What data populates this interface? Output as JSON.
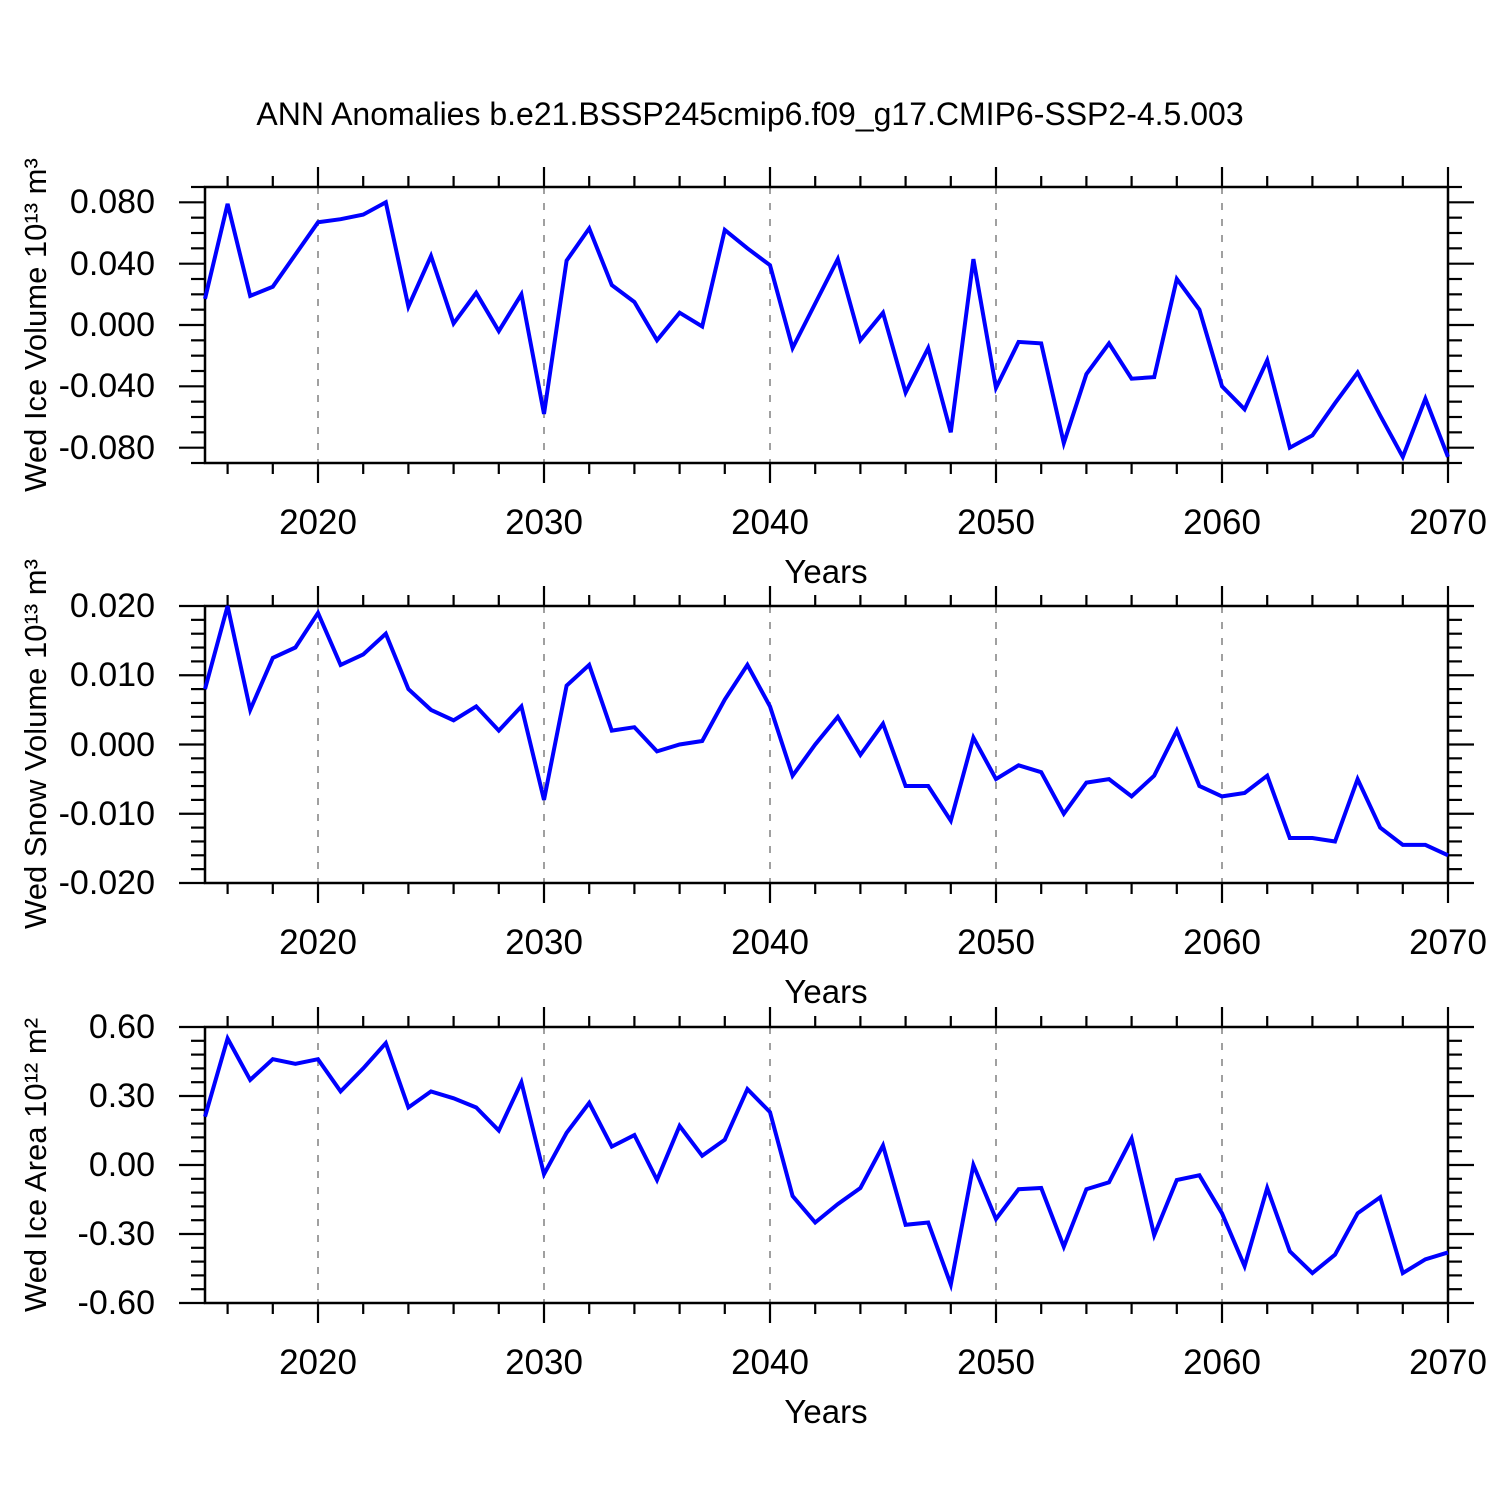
{
  "title": "ANN Anomalies b.e21.BSSP245cmip6.f09_g17.CMIP6-SSP2-4.5.003",
  "colors": {
    "line": "#0000ff",
    "grid": "#a0a0a0",
    "axis": "#000000",
    "background": "#ffffff"
  },
  "years": [
    2015,
    2016,
    2017,
    2018,
    2019,
    2020,
    2021,
    2022,
    2023,
    2024,
    2025,
    2026,
    2027,
    2028,
    2029,
    2030,
    2031,
    2032,
    2033,
    2034,
    2035,
    2036,
    2037,
    2038,
    2039,
    2040,
    2041,
    2042,
    2043,
    2044,
    2045,
    2046,
    2047,
    2048,
    2049,
    2050,
    2051,
    2052,
    2053,
    2054,
    2055,
    2056,
    2057,
    2058,
    2059,
    2060,
    2061,
    2062,
    2063,
    2064,
    2065,
    2066,
    2067,
    2068,
    2069,
    2070
  ],
  "x_axis": {
    "label": "Years",
    "start_year": 2015,
    "end_year": 2070,
    "major_ticks": [
      2020,
      2030,
      2040,
      2050,
      2060,
      2070
    ],
    "major_tick_labels": [
      "2020",
      "2030",
      "2040",
      "2050",
      "2060",
      "2070"
    ],
    "minor_tick_step": 2,
    "gridline_years": [
      2020,
      2030,
      2040,
      2050,
      2060
    ]
  },
  "chart_data": [
    {
      "type": "line",
      "series_name": "Wed Ice Volume anomaly",
      "ylabel": "Wed Ice Volume 10¹³ m³",
      "xlabel": "Years",
      "x_ref": "years",
      "ylim": [
        -0.09,
        0.09
      ],
      "ytick_values": [
        0.08,
        0.04,
        0.0,
        -0.04,
        -0.08
      ],
      "ytick_labels": [
        "0.080",
        "0.040",
        "0.000",
        "-0.040",
        "-0.080"
      ],
      "y_minor_step": 0.01,
      "grid": "vertical-dashed",
      "legend": "none",
      "values": [
        0.017,
        0.079,
        0.019,
        0.025,
        0.046,
        0.067,
        0.069,
        0.072,
        0.08,
        0.012,
        0.045,
        0.001,
        0.021,
        -0.004,
        0.02,
        -0.058,
        0.042,
        0.063,
        0.026,
        0.015,
        -0.01,
        0.008,
        -0.001,
        0.062,
        0.05,
        0.039,
        -0.015,
        0.014,
        0.043,
        -0.01,
        0.008,
        -0.044,
        -0.015,
        -0.07,
        0.043,
        -0.041,
        -0.011,
        -0.012,
        -0.077,
        -0.032,
        -0.012,
        -0.035,
        -0.034,
        0.03,
        0.01,
        -0.04,
        -0.055,
        -0.023,
        -0.08,
        -0.072,
        -0.051,
        -0.031,
        -0.059,
        -0.086,
        -0.048,
        -0.086
      ]
    },
    {
      "type": "line",
      "series_name": "Wed Snow Volume anomaly",
      "ylabel": "Wed Snow Volume 10¹³ m³",
      "xlabel": "Years",
      "x_ref": "years",
      "ylim": [
        -0.02,
        0.02
      ],
      "ytick_values": [
        0.02,
        0.01,
        0.0,
        -0.01,
        -0.02
      ],
      "ytick_labels": [
        "0.020",
        "0.010",
        "0.000",
        "-0.010",
        "-0.020"
      ],
      "y_minor_step": 0.002,
      "grid": "vertical-dashed",
      "legend": "none",
      "values": [
        0.008,
        0.02,
        0.005,
        0.0125,
        0.014,
        0.019,
        0.0115,
        0.013,
        0.016,
        0.008,
        0.005,
        0.0035,
        0.0055,
        0.002,
        0.0055,
        -0.008,
        0.0085,
        0.0115,
        0.002,
        0.0025,
        -0.001,
        0.0,
        0.0005,
        0.0065,
        0.0115,
        0.0055,
        -0.0045,
        0.0,
        0.004,
        -0.0015,
        0.003,
        -0.006,
        -0.006,
        -0.011,
        0.001,
        -0.005,
        -0.003,
        -0.004,
        -0.01,
        -0.0055,
        -0.005,
        -0.0075,
        -0.0045,
        0.002,
        -0.006,
        -0.0075,
        -0.007,
        -0.0045,
        -0.0135,
        -0.0135,
        -0.014,
        -0.005,
        -0.012,
        -0.0145,
        -0.0145,
        -0.016
      ]
    },
    {
      "type": "line",
      "series_name": "Wed Ice Area anomaly",
      "ylabel": "Wed Ice Area 10¹² m²",
      "xlabel": "Years",
      "x_ref": "years",
      "ylim": [
        -0.6,
        0.6
      ],
      "ytick_values": [
        0.6,
        0.3,
        0.0,
        -0.3,
        -0.6
      ],
      "ytick_labels": [
        "0.60",
        "0.30",
        "0.00",
        "-0.30",
        "-0.60"
      ],
      "y_minor_step": 0.06,
      "grid": "vertical-dashed",
      "legend": "none",
      "values": [
        0.21,
        0.55,
        0.37,
        0.46,
        0.44,
        0.46,
        0.32,
        0.42,
        0.53,
        0.25,
        0.32,
        0.29,
        0.25,
        0.15,
        0.36,
        -0.04,
        0.14,
        0.27,
        0.08,
        0.13,
        -0.065,
        0.17,
        0.04,
        0.11,
        0.33,
        0.23,
        -0.135,
        -0.25,
        -0.17,
        -0.1,
        0.085,
        -0.26,
        -0.25,
        -0.52,
        0.0,
        -0.235,
        -0.105,
        -0.1,
        -0.355,
        -0.105,
        -0.075,
        0.115,
        -0.305,
        -0.065,
        -0.045,
        -0.21,
        -0.44,
        -0.1,
        -0.375,
        -0.47,
        -0.39,
        -0.21,
        -0.14,
        -0.47,
        -0.41,
        -0.38
      ]
    }
  ]
}
